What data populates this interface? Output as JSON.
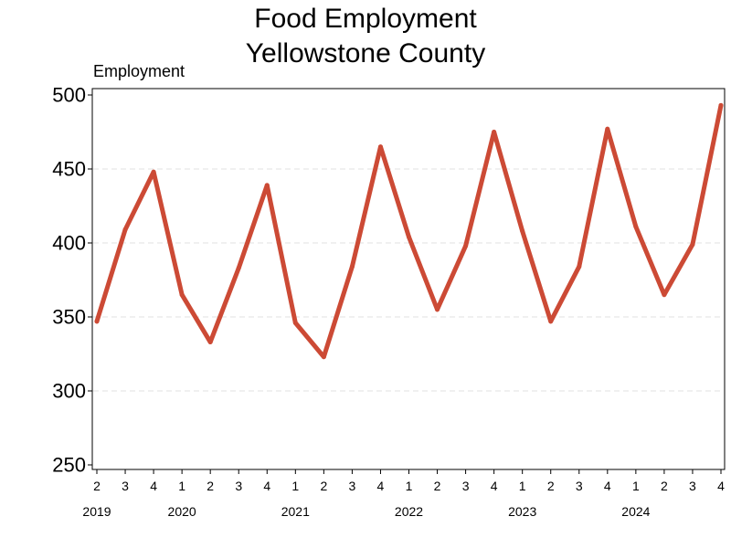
{
  "chart_data": {
    "type": "line",
    "title": [
      "Food Employment",
      "Yellowstone County"
    ],
    "ylabel": "Employment",
    "xlabel": "",
    "ylim": [
      250,
      500
    ],
    "yticks": [
      250,
      300,
      350,
      400,
      450,
      500
    ],
    "grid": true,
    "line_color": "#cc4a35",
    "grid_color": "#e0e0e0",
    "x_quarters": [
      "2",
      "3",
      "4",
      "1",
      "2",
      "3",
      "4",
      "1",
      "2",
      "3",
      "4",
      "1",
      "2",
      "3",
      "4",
      "1",
      "2",
      "3",
      "4",
      "1",
      "2",
      "3",
      "4"
    ],
    "x_years": [
      {
        "label": "2019",
        "index": 0
      },
      {
        "label": "2020",
        "index": 3
      },
      {
        "label": "2021",
        "index": 7
      },
      {
        "label": "2022",
        "index": 11
      },
      {
        "label": "2023",
        "index": 15
      },
      {
        "label": "2024",
        "index": 19
      }
    ],
    "series": [
      {
        "values": [
          347,
          409,
          448,
          365,
          333,
          383,
          439,
          346,
          323,
          384,
          465,
          404,
          355,
          398,
          475,
          408,
          347,
          384,
          477,
          411,
          365,
          399,
          493
        ]
      }
    ]
  }
}
